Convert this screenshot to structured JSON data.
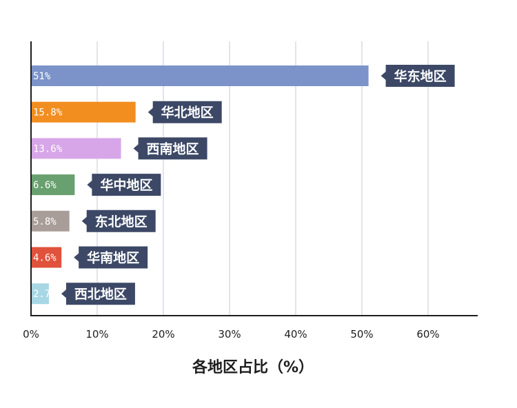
{
  "chart_data": {
    "type": "bar",
    "orientation": "horizontal",
    "categories": [
      "华东地区",
      "华北地区",
      "西南地区",
      "华中地区",
      "东北地区",
      "华南地区",
      "西北地区"
    ],
    "values": [
      51,
      15.8,
      13.6,
      6.6,
      5.8,
      4.6,
      2.7
    ],
    "value_labels": [
      "51%",
      "15.8%",
      "13.6%",
      "6.6%",
      "5.8%",
      "4.6%",
      "2.7%"
    ],
    "colors": [
      "#7b93c9",
      "#f28e20",
      "#d7a6e8",
      "#69a06f",
      "#a89d98",
      "#e0523b",
      "#a7d7e4"
    ],
    "label_box_color": "#3c4866",
    "xlabel": "各地区占比（%）",
    "ylabel": "",
    "xlim": [
      0,
      67
    ],
    "x_ticks": [
      0,
      10,
      20,
      30,
      40,
      50,
      60
    ],
    "x_tick_labels": [
      "0%",
      "10%",
      "20%",
      "30%",
      "40%",
      "50%",
      "60%"
    ],
    "grid": "vertical",
    "grid_color": "#cfd3dc"
  }
}
